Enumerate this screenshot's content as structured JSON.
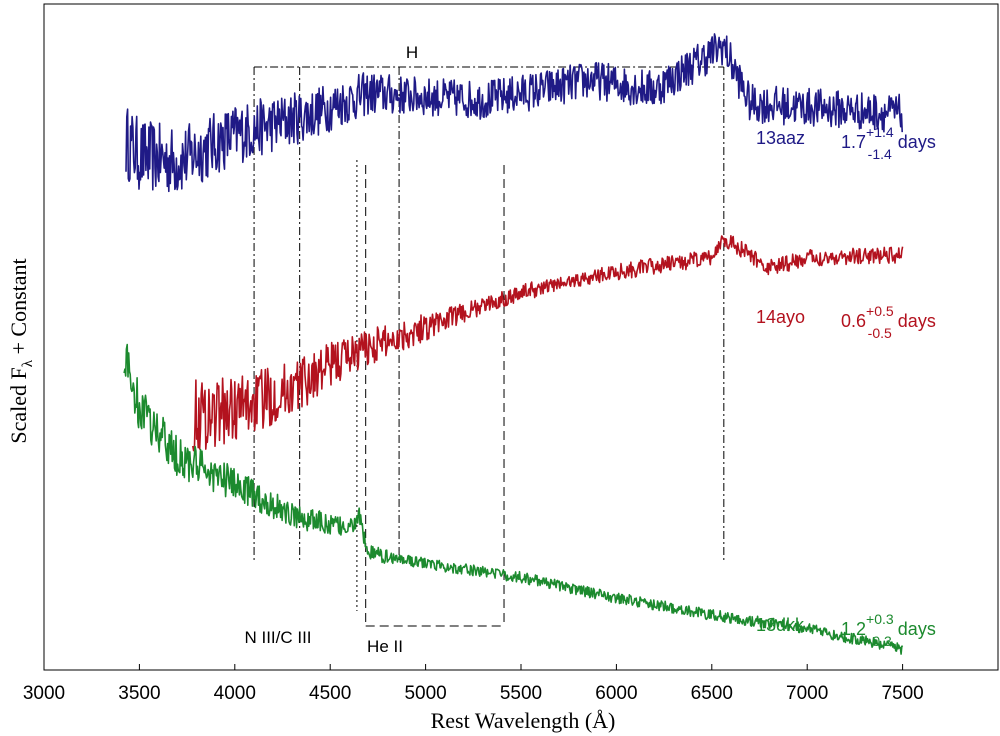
{
  "chart_data": {
    "type": "line",
    "xlabel": "Rest Wavelength (Å)",
    "ylabel": "Scaled F",
    "ylabel_sub": "λ",
    "ylabel_rest": " + Constant",
    "xlim": [
      3000,
      8000
    ],
    "xticks": [
      3000,
      3500,
      4000,
      4500,
      5000,
      5500,
      6000,
      6500,
      7000,
      7500
    ],
    "y_ticks_shown": false,
    "grid": false,
    "series": [
      {
        "name": "13aaz",
        "phase_main": "1.7",
        "phase_plus": "+1.4",
        "phase_minus": "-1.4",
        "phase_unit": "days",
        "color": "#1f1a86",
        "x_start": 3430,
        "x_end": 7500,
        "offset": 7.7,
        "anchors": [
          [
            3430,
            7.2
          ],
          [
            3500,
            7.0
          ],
          [
            3700,
            6.9
          ],
          [
            4000,
            7.3
          ],
          [
            4400,
            7.6
          ],
          [
            4700,
            7.9
          ],
          [
            5000,
            7.85
          ],
          [
            5300,
            7.8
          ],
          [
            5600,
            7.95
          ],
          [
            5870,
            8.1
          ],
          [
            6200,
            7.95
          ],
          [
            6560,
            8.6
          ],
          [
            6700,
            7.75
          ],
          [
            7000,
            7.7
          ],
          [
            7500,
            7.6
          ]
        ],
        "noise": [
          0.55,
          0.28
        ]
      },
      {
        "name": "14ayo",
        "phase_main": "0.6",
        "phase_plus": "+0.5",
        "phase_minus": "-0.5",
        "phase_unit": "days",
        "color": "#b3121e",
        "x_start": 3780,
        "x_end": 7500,
        "offset": 4.3,
        "anchors": [
          [
            3780,
            3.2
          ],
          [
            4000,
            3.3
          ],
          [
            4300,
            3.6
          ],
          [
            4600,
            4.1
          ],
          [
            5000,
            4.5
          ],
          [
            5500,
            5.0
          ],
          [
            6000,
            5.3
          ],
          [
            6500,
            5.5
          ],
          [
            6560,
            5.8
          ],
          [
            6800,
            5.35
          ],
          [
            7000,
            5.5
          ],
          [
            7500,
            5.55
          ]
        ],
        "noise": [
          0.55,
          0.12
        ]
      },
      {
        "name": "13dkk",
        "phase_main": "1.2",
        "phase_plus": "+0.3",
        "phase_minus": "-0.3",
        "phase_unit": "days",
        "color": "#1c8a2e",
        "x_start": 3420,
        "x_end": 7500,
        "offset": 0.9,
        "anchors": [
          [
            3420,
            4.1
          ],
          [
            3500,
            3.3
          ],
          [
            3700,
            2.6
          ],
          [
            4000,
            2.2
          ],
          [
            4300,
            1.75
          ],
          [
            4600,
            1.55
          ],
          [
            4650,
            1.75
          ],
          [
            4700,
            1.2
          ],
          [
            5000,
            1.05
          ],
          [
            5500,
            0.85
          ],
          [
            6000,
            0.55
          ],
          [
            6500,
            0.3
          ],
          [
            7000,
            0.1
          ],
          [
            7500,
            -0.2
          ]
        ],
        "noise": [
          0.35,
          0.08
        ]
      }
    ],
    "line_ids": [
      {
        "label": "H",
        "type": "dash-dot",
        "wavelengths": [
          4101,
          4340,
          4861,
          6563
        ]
      },
      {
        "label": "N III/C III",
        "type": "dotted",
        "wavelengths": [
          4640
        ]
      },
      {
        "label": "He II",
        "type": "dashed",
        "wavelengths": [
          4686,
          5411
        ]
      }
    ]
  }
}
